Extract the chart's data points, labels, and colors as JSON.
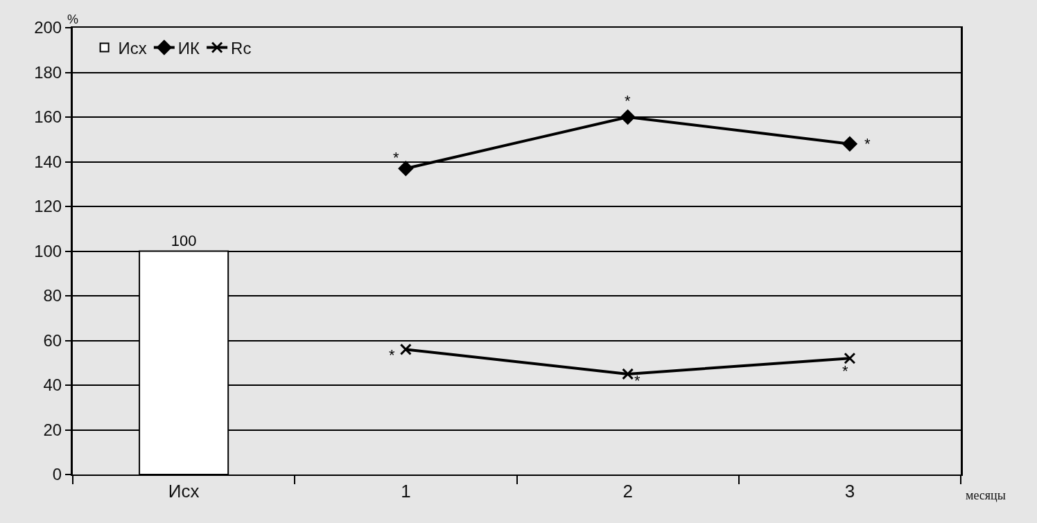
{
  "chart_data": {
    "type": "line",
    "ylabel": "%",
    "xlabel": "месяцы",
    "categories": [
      "Исх",
      "1",
      "2",
      "3"
    ],
    "series": [
      {
        "name": "Исх",
        "type": "bar",
        "color": "#ffffff",
        "values": [
          100,
          null,
          null,
          null
        ],
        "value_labels": [
          "100",
          null,
          null,
          null
        ]
      },
      {
        "name": "ИК",
        "color": "#000000",
        "marker": "diamond",
        "values": [
          null,
          137,
          160,
          148
        ]
      },
      {
        "name": "Rc",
        "color": "#000000",
        "marker": "cross",
        "values": [
          null,
          56,
          45,
          52
        ]
      }
    ],
    "ylim": [
      0,
      200
    ],
    "yticks": [
      0,
      20,
      40,
      60,
      80,
      100,
      120,
      140,
      160,
      180,
      200
    ],
    "grid": "y",
    "legend": "top left",
    "line_style": "solid",
    "annotations": [
      {
        "text": "*",
        "x": "1",
        "y": 137
      },
      {
        "text": "*",
        "x": "2",
        "y": 160
      },
      {
        "text": "*",
        "x": "3",
        "y": 148
      },
      {
        "text": "*",
        "x": "1",
        "y": 56
      },
      {
        "text": "*",
        "x": "2",
        "y": 45
      },
      {
        "text": "*",
        "x": "3",
        "y": 52
      }
    ]
  }
}
